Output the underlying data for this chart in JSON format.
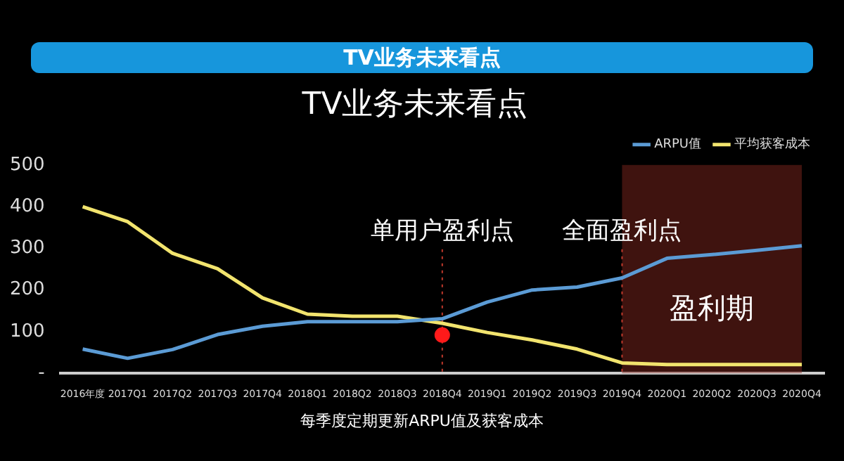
{
  "chart_data": {
    "type": "line",
    "title": "TV业务未来看点",
    "subtitle": "TV业务未来看点",
    "categories": [
      "2016年度",
      "2017Q1",
      "2017Q2",
      "2017Q3",
      "2017Q4",
      "2018Q1",
      "2018Q2",
      "2018Q3",
      "2018Q4",
      "2019Q1",
      "2019Q2",
      "2019Q3",
      "2019Q4",
      "2020Q1",
      "2020Q2",
      "2020Q3",
      "2020Q4"
    ],
    "series": [
      {
        "name": "ARPU值",
        "color": "#5b9bd5",
        "values": [
          58,
          36,
          57,
          93,
          113,
          124,
          124,
          124,
          131,
          171,
          200,
          207,
          229,
          276,
          285,
          295,
          306
        ]
      },
      {
        "name": "平均获客成本",
        "color": "#f2e46e",
        "values": [
          400,
          364,
          288,
          251,
          181,
          142,
          137,
          137,
          120,
          98,
          80,
          58,
          25,
          21,
          21,
          21,
          21
        ]
      },
      {
        "type": "scatter",
        "color": "#ff1a1a",
        "x": [
          "2018Q4"
        ],
        "values": [
          92
        ]
      }
    ],
    "ylim": [
      0,
      500
    ],
    "yticks": [
      {
        "value": 0,
        "label": "-"
      },
      100,
      200,
      300,
      400,
      500
    ],
    "ref_lines": [
      {
        "axis": "x",
        "value": "2018Q4",
        "label": "单用户盈利点",
        "color": "#c0392b",
        "line_style": "dotted"
      },
      {
        "axis": "x",
        "value": "2019Q4",
        "label": "全面盈利点",
        "color": "#c0392b",
        "line_style": "dotted"
      }
    ],
    "bands": [
      {
        "axis": "x",
        "from": "2019Q4",
        "to": "2020Q4",
        "label": "盈利期",
        "color": "#8b2a22"
      }
    ],
    "annotations": [
      "每季度定期更新ARPU值及获客成本"
    ],
    "legend": "top right",
    "line_style": "solid"
  }
}
